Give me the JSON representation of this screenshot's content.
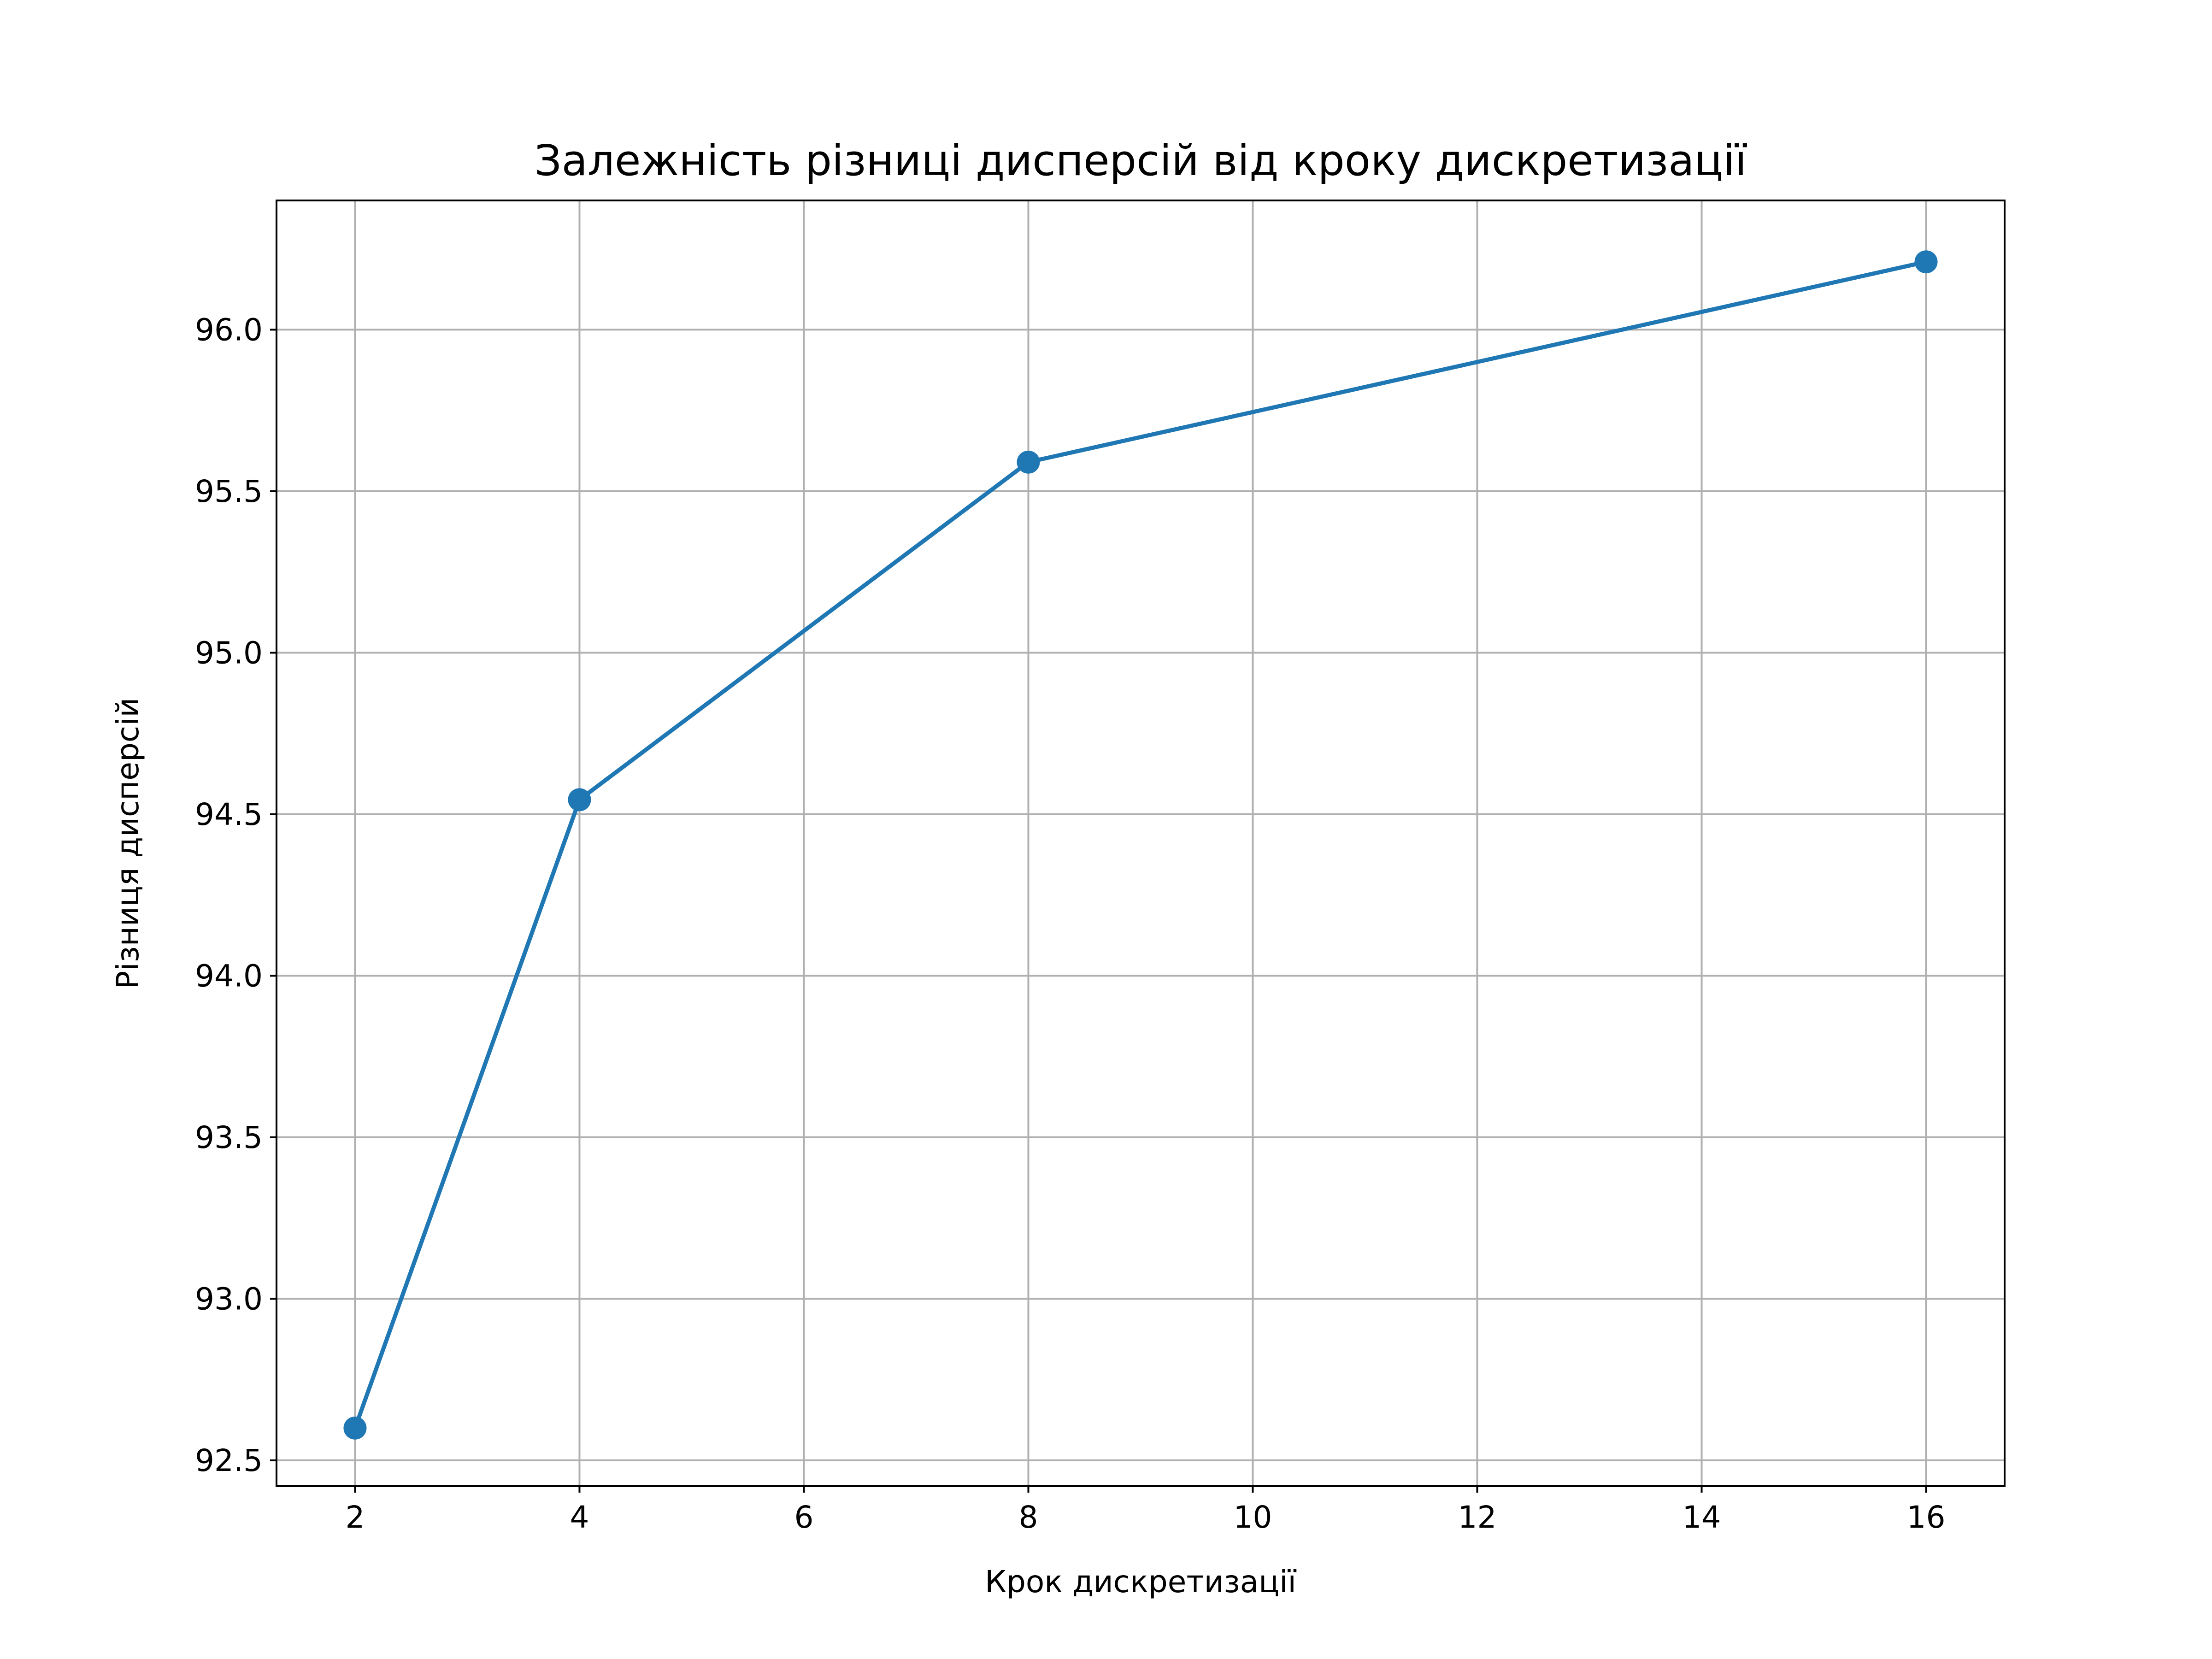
{
  "chart_data": {
    "type": "line",
    "title": "Залежність різниці дисперсій від кроку дискретизації",
    "xlabel": "Крок дискретизації",
    "ylabel": "Різниця дисперсій",
    "x": [
      2,
      4,
      8,
      16
    ],
    "series": [
      {
        "values": [
          92.6,
          94.545,
          95.59,
          96.21
        ],
        "color": "#1f77b4",
        "marker": "circle"
      }
    ],
    "xlim": [
      1.3,
      16.7
    ],
    "ylim": [
      92.42,
      96.4
    ],
    "xticks": [
      2,
      4,
      6,
      8,
      10,
      12,
      14,
      16
    ],
    "xtick_labels": [
      "2",
      "4",
      "6",
      "8",
      "10",
      "12",
      "14",
      "16"
    ],
    "yticks": [
      92.5,
      93.0,
      93.5,
      94.0,
      94.5,
      95.0,
      95.5,
      96.0
    ],
    "ytick_labels": [
      "92.5",
      "93.0",
      "93.5",
      "94.0",
      "94.5",
      "95.0",
      "95.5",
      "96.0"
    ],
    "grid": true,
    "grid_color": "#b0b0b0",
    "legend": "none"
  }
}
